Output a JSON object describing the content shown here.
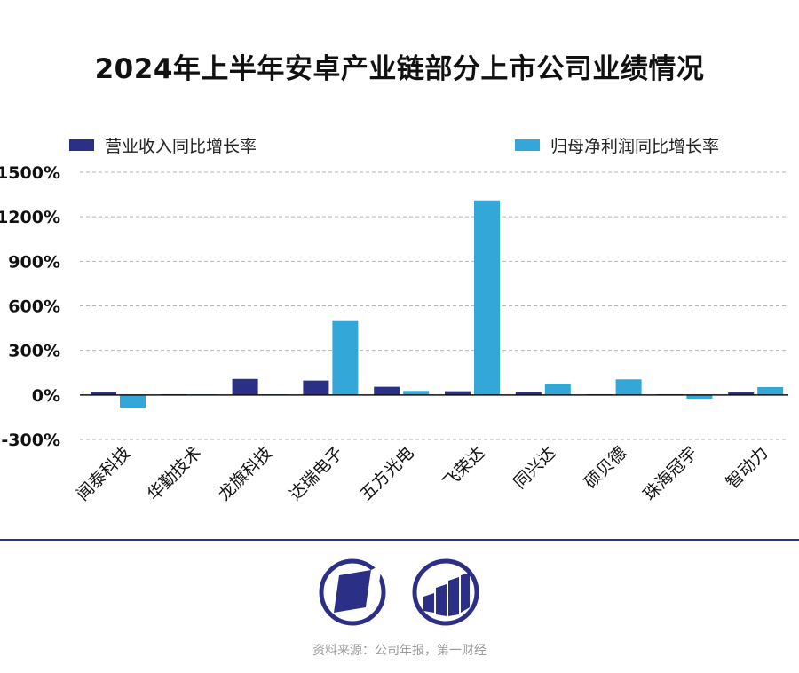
{
  "title": "2024年上半年安卓产业链部分上市公司业绩情况",
  "source": "资料来源：公司年报，第一财经",
  "logos": [
    {
      "name": "diagonal-logo-icon"
    },
    {
      "name": "columns-logo-icon"
    }
  ],
  "chart_data": {
    "type": "bar",
    "title": "2024年上半年安卓产业链部分上市公司业绩情况",
    "categories": [
      "闻泰科技",
      "华勤技术",
      "龙旗科技",
      "达瑞电子",
      "五方光电",
      "飞荣达",
      "同兴达",
      "硕贝德",
      "珠海冠宇",
      "智动力"
    ],
    "series": [
      {
        "name": "营业收入同比增长率",
        "color": "#2c2f86",
        "values": [
          17,
          5,
          108,
          97,
          55,
          25,
          20,
          5,
          5,
          17
        ]
      },
      {
        "name": "归母净利润同比增长率",
        "color": "#33a7d8",
        "values": [
          -85,
          5,
          5,
          503,
          27,
          1310,
          76,
          105,
          -25,
          53
        ]
      }
    ],
    "yticks": [
      "1500%",
      "1200%",
      "900%",
      "600%",
      "300%",
      "0%",
      "-300%"
    ],
    "ylim": [
      -300,
      1500
    ],
    "grid": true,
    "legend_position": "top"
  }
}
